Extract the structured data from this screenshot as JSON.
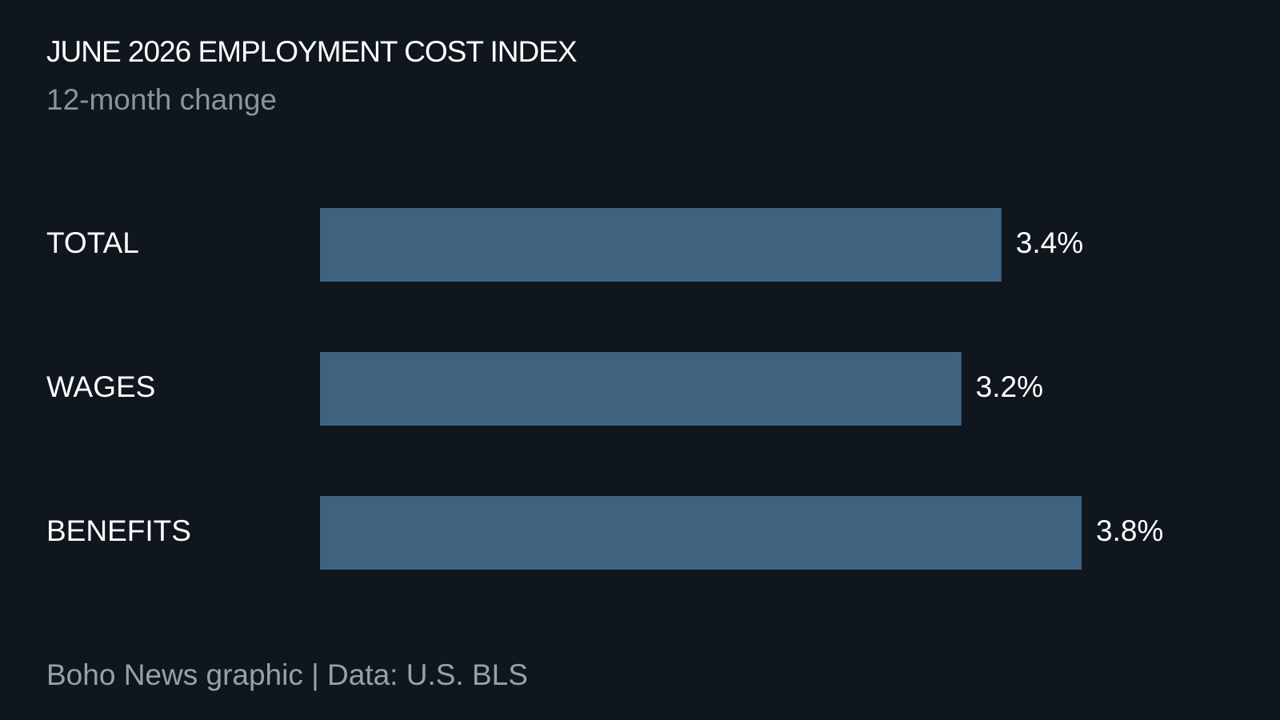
{
  "chart_data": {
    "type": "bar",
    "orientation": "horizontal",
    "title": "JUNE 2026 EMPLOYMENT COST INDEX",
    "subtitle": "12-month change",
    "categories": [
      "TOTAL",
      "WAGES",
      "BENEFITS"
    ],
    "values": [
      3.4,
      3.2,
      3.8
    ],
    "value_labels": [
      "3.4%",
      "3.2%",
      "3.8%"
    ],
    "color": "#41627f",
    "source": "Boho News graphic | Data: U.S. BLS"
  }
}
